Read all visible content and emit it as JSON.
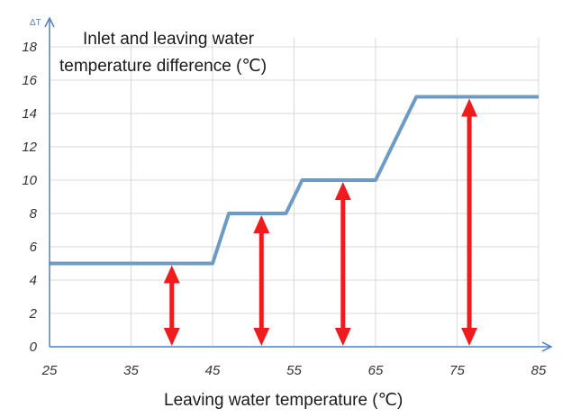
{
  "chart_data": {
    "type": "line",
    "title": "",
    "ylabel_symbol": "ΔT",
    "ylabel_line1": "Inlet and leaving water",
    "ylabel_line2": "temperature difference (℃)",
    "xlabel": "Leaving water temperature (℃)",
    "xlim": [
      25,
      85
    ],
    "ylim": [
      0,
      18
    ],
    "x_ticks": [
      "25",
      "35",
      "45",
      "55",
      "65",
      "75",
      "85"
    ],
    "y_ticks": [
      "0",
      "2",
      "4",
      "6",
      "8",
      "10",
      "12",
      "14",
      "16",
      "18"
    ],
    "grid": true,
    "series": [
      {
        "x": [
          25,
          45,
          47,
          54,
          56,
          65,
          70,
          85
        ],
        "y": [
          5,
          5,
          8,
          8,
          10,
          10,
          15,
          15
        ]
      }
    ],
    "annotations": [
      {
        "type": "double-arrow",
        "x": 40,
        "y_from": 0,
        "y_to": 5
      },
      {
        "type": "double-arrow",
        "x": 51,
        "y_from": 0,
        "y_to": 8
      },
      {
        "type": "double-arrow",
        "x": 61,
        "y_from": 0,
        "y_to": 10
      },
      {
        "type": "double-arrow",
        "x": 76.5,
        "y_from": 0,
        "y_to": 15
      }
    ],
    "colors": {
      "line": "#6d9bc3",
      "arrow": "#ee1c1c",
      "axis": "#4f81bd",
      "grid": "#d9d9d9"
    }
  }
}
